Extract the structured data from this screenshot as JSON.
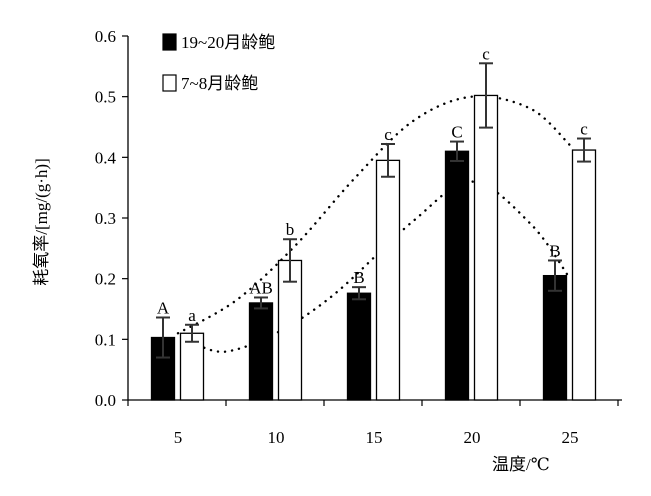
{
  "chart_data": {
    "type": "bar",
    "xlabel": "温度/℃",
    "ylabel": "耗氧率/[mg/(g·h)]",
    "ylim": [
      0,
      0.6
    ],
    "yticks": [
      "0.0",
      "0.1",
      "0.2",
      "0.3",
      "0.4",
      "0.5",
      "0.6"
    ],
    "categories": [
      "5",
      "10",
      "15",
      "20",
      "25"
    ],
    "legend_position": "top-left",
    "series": [
      {
        "name": "19~20月龄鲍",
        "fill": "#000000",
        "values": [
          0.103,
          0.16,
          0.176,
          0.41,
          0.205
        ],
        "errors": [
          0.033,
          0.009,
          0.01,
          0.016,
          0.025
        ],
        "letters": [
          "A",
          "AB",
          "B",
          "C",
          "B"
        ]
      },
      {
        "name": "7~8月龄鲍",
        "fill": "#ffffff",
        "values": [
          0.11,
          0.23,
          0.395,
          0.502,
          0.412
        ],
        "errors": [
          0.014,
          0.035,
          0.027,
          0.053,
          0.019
        ],
        "letters": [
          "a",
          "b",
          "c",
          "c",
          "c"
        ]
      }
    ],
    "trendlines": [
      {
        "series": "19~20月龄鲍",
        "style": "dotted",
        "points": [
          [
            6,
            0.09
          ],
          [
            7.5,
            0.08
          ],
          [
            10,
            0.11
          ],
          [
            13,
            0.175
          ],
          [
            17,
            0.295
          ],
          [
            20,
            0.36
          ],
          [
            23,
            0.29
          ],
          [
            25,
            0.2
          ]
        ]
      },
      {
        "series": "7~8月龄鲍",
        "style": "dotted",
        "points": [
          [
            5,
            0.11
          ],
          [
            8,
            0.165
          ],
          [
            11,
            0.255
          ],
          [
            14,
            0.365
          ],
          [
            17,
            0.46
          ],
          [
            20,
            0.5
          ],
          [
            23,
            0.48
          ],
          [
            25,
            0.42
          ]
        ]
      }
    ]
  }
}
